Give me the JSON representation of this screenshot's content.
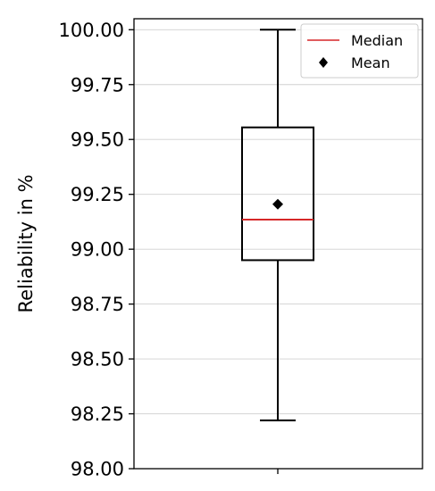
{
  "chart_data": {
    "type": "box",
    "title": "",
    "xlabel": "",
    "ylabel": "Reliability in %",
    "ylim": [
      98.0,
      100.05
    ],
    "yticks": [
      98.0,
      98.25,
      98.5,
      98.75,
      99.0,
      99.25,
      99.5,
      99.75,
      100.0
    ],
    "ytick_labels": [
      "98.00",
      "98.25",
      "98.50",
      "98.75",
      "99.00",
      "99.25",
      "99.50",
      "99.75",
      "100.00"
    ],
    "grid": "horizontal",
    "box": {
      "whisker_low": 98.22,
      "q1": 98.95,
      "median": 99.135,
      "mean": 99.205,
      "q3": 99.555,
      "whisker_high": 100.0
    },
    "legend": {
      "placement": "top-right",
      "entries": [
        {
          "label": "Median",
          "marker": "line",
          "color": "#d62728"
        },
        {
          "label": "Mean",
          "marker": "diamond",
          "color": "#000000"
        }
      ]
    },
    "colors": {
      "median": "#d62728",
      "mean": "#000000",
      "box": "#000000",
      "grid": "#d0d0d0"
    }
  }
}
